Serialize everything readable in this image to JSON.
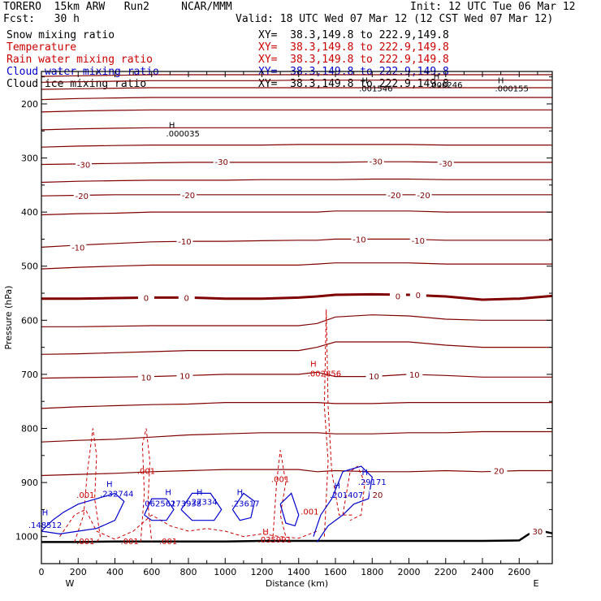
{
  "header": {
    "model": "TORERO  15km ARW   Run2     NCAR/MMM",
    "init": "Init: 12 UTC Tue 06 Mar 12",
    "fcst": "Fcst:   30 h",
    "valid": "Valid: 18 UTC Wed 07 Mar 12 (12 CST Wed 07 Mar 12)"
  },
  "fields": [
    {
      "name": "Snow mixing ratio",
      "xy": "XY=  38.3,149.8 to 222.9,149.8",
      "color": "#000000"
    },
    {
      "name": "Temperature",
      "xy": "XY=  38.3,149.8 to 222.9,149.8",
      "color": "#cc0000"
    },
    {
      "name": "Rain water mixing ratio",
      "xy": "XY=  38.3,149.8 to 222.9,149.8",
      "color": "#cc0000"
    },
    {
      "name": "Cloud water mixing ratio",
      "xy": "XY=  38.3,149.8 to 222.9,149.8",
      "color": "#0000cc"
    },
    {
      "name": "Cloud ice mixing ratio",
      "xy": "XY=  38.3,149.8 to 222.9,149.8",
      "color": "#000000"
    }
  ],
  "chart_data": {
    "type": "contour-cross-section",
    "xlabel": "Distance (km)",
    "ylabel": "Pressure (hPa)",
    "xlim": [
      0,
      2780
    ],
    "ylim": [
      1050,
      140
    ],
    "x_ticks": [
      0,
      200,
      400,
      600,
      800,
      1000,
      1200,
      1400,
      1600,
      1800,
      2000,
      2200,
      2400,
      2600
    ],
    "y_ticks": [
      200,
      300,
      400,
      500,
      600,
      700,
      800,
      900,
      1000
    ],
    "direction_left": "W",
    "direction_right": "E",
    "temperature_color": "#800000",
    "zero_isotherm_color": "#800000",
    "isotherm_labels": [
      {
        "text": "-30",
        "x": 230,
        "p": 312
      },
      {
        "text": "-30",
        "x": 980,
        "p": 307
      },
      {
        "text": "-30",
        "x": 1820,
        "p": 306
      },
      {
        "text": "-30",
        "x": 2200,
        "p": 310
      },
      {
        "text": "-20",
        "x": 220,
        "p": 370
      },
      {
        "text": "-20",
        "x": 800,
        "p": 368
      },
      {
        "text": "-20",
        "x": 1920,
        "p": 368
      },
      {
        "text": "-20",
        "x": 2080,
        "p": 368
      },
      {
        "text": "-10",
        "x": 200,
        "p": 465
      },
      {
        "text": "-10",
        "x": 780,
        "p": 454
      },
      {
        "text": "-10",
        "x": 1730,
        "p": 450
      },
      {
        "text": "-10",
        "x": 2050,
        "p": 452
      },
      {
        "text": "0",
        "x": 570,
        "p": 558
      },
      {
        "text": "0",
        "x": 790,
        "p": 558
      },
      {
        "text": "0",
        "x": 1940,
        "p": 555
      },
      {
        "text": "0",
        "x": 2050,
        "p": 553
      },
      {
        "text": "10",
        "x": 570,
        "p": 705
      },
      {
        "text": "10",
        "x": 780,
        "p": 702
      },
      {
        "text": "10",
        "x": 1810,
        "p": 703
      },
      {
        "text": "10",
        "x": 2030,
        "p": 700
      },
      {
        "text": "20",
        "x": 2490,
        "p": 878
      },
      {
        "text": "20",
        "x": 1830,
        "p": 922
      },
      {
        "text": "30",
        "x": 2700,
        "p": 990
      }
    ],
    "maxima_labels": [
      {
        "text": "H",
        "x": 1760,
        "p": 156,
        "color": "#000000"
      },
      {
        "text": ".001546",
        "x": 1820,
        "p": 171,
        "color": "#000000"
      },
      {
        "text": "H",
        "x": 2150,
        "p": 148,
        "color": "#000000"
      },
      {
        "text": ".000246",
        "x": 2200,
        "p": 164,
        "color": "#000000"
      },
      {
        "text": "H",
        "x": 2500,
        "p": 156,
        "color": "#000000"
      },
      {
        "text": ".000155",
        "x": 2560,
        "p": 171,
        "color": "#000000"
      },
      {
        "text": "H",
        "x": 710,
        "p": 238,
        "color": "#000000"
      },
      {
        "text": ".000035",
        "x": 770,
        "p": 254,
        "color": "#000000"
      },
      {
        "text": "H",
        "x": 1480,
        "p": 680,
        "color": "#cc0000"
      },
      {
        "text": ".002856",
        "x": 1540,
        "p": 698,
        "color": "#cc0000"
      },
      {
        "text": ".001",
        "x": 570,
        "p": 878,
        "color": "#cc0000"
      },
      {
        "text": ".001",
        "x": 1300,
        "p": 893,
        "color": "#cc0000"
      },
      {
        "text": ".001",
        "x": 240,
        "p": 922,
        "color": "#cc0000"
      },
      {
        "text": ".001",
        "x": 1460,
        "p": 953,
        "color": "#cc0000"
      },
      {
        "text": ".001",
        "x": 240,
        "p": 1008,
        "color": "#cc0000"
      },
      {
        "text": ".001",
        "x": 480,
        "p": 1008,
        "color": "#cc0000"
      },
      {
        "text": ".001",
        "x": 690,
        "p": 1008,
        "color": "#cc0000"
      },
      {
        "text": "H",
        "x": 1220,
        "p": 990,
        "color": "#cc0000"
      },
      {
        "text": ".035991",
        "x": 1270,
        "p": 1005,
        "color": "#cc0000"
      },
      {
        "text": "H",
        "x": 370,
        "p": 902,
        "color": "#0000cc"
      },
      {
        "text": ".232744",
        "x": 410,
        "p": 920,
        "color": "#0000cc"
      },
      {
        "text": "H",
        "x": 690,
        "p": 917,
        "color": "#0000cc"
      },
      {
        "text": ".062561",
        "x": 640,
        "p": 938,
        "color": "#0000cc"
      },
      {
        "text": ".273938",
        "x": 780,
        "p": 938,
        "color": "#0000cc"
      },
      {
        "text": "H",
        "x": 860,
        "p": 917,
        "color": "#0000cc"
      },
      {
        "text": ".27334",
        "x": 880,
        "p": 935,
        "color": "#0000cc"
      },
      {
        "text": "H",
        "x": 1080,
        "p": 917,
        "color": "#0000cc"
      },
      {
        "text": ".23617",
        "x": 1110,
        "p": 938,
        "color": "#0000cc"
      },
      {
        "text": "H",
        "x": 1760,
        "p": 880,
        "color": "#0000cc"
      },
      {
        "text": ".29171",
        "x": 1800,
        "p": 898,
        "color": "#0000cc"
      },
      {
        "text": "H",
        "x": 1610,
        "p": 905,
        "color": "#0000cc"
      },
      {
        "text": ".201407",
        "x": 1660,
        "p": 922,
        "color": "#0000cc"
      },
      {
        "text": "H",
        "x": 20,
        "p": 955,
        "color": "#0000cc"
      },
      {
        "text": ".148512",
        "x": 20,
        "p": 978,
        "color": "#0000cc"
      }
    ],
    "temperature_isotherms_p_at_x": {
      "x": [
        0,
        200,
        400,
        600,
        800,
        1000,
        1200,
        1400,
        1500,
        1600,
        1800,
        2000,
        2200,
        2400,
        2600,
        2780
      ],
      "levels": [
        [
          149,
          148,
          147,
          146,
          146,
          146,
          146,
          146,
          146,
          146,
          146,
          146,
          146,
          146,
          146,
          146
        ],
        [
          160,
          159,
          158,
          157,
          157,
          157,
          157,
          156,
          156,
          156,
          156,
          156,
          156,
          156,
          156,
          156
        ],
        [
          173,
          172,
          171,
          170,
          170,
          170,
          170,
          170,
          170,
          170,
          170,
          170,
          170,
          170,
          170,
          170
        ],
        [
          192,
          190,
          189,
          188,
          188,
          188,
          188,
          188,
          188,
          188,
          188,
          188,
          188,
          188,
          188,
          188
        ],
        [
          215,
          213,
          212,
          211,
          211,
          211,
          211,
          211,
          211,
          211,
          211,
          211,
          211,
          211,
          211,
          211
        ],
        [
          248,
          246,
          245,
          244,
          244,
          244,
          244,
          244,
          244,
          244,
          244,
          244,
          244,
          244,
          244,
          244
        ],
        [
          280,
          278,
          277,
          276,
          276,
          276,
          276,
          275,
          275,
          275,
          275,
          275,
          276,
          276,
          276,
          276
        ],
        [
          312,
          311,
          310,
          309,
          308,
          308,
          308,
          308,
          308,
          308,
          307,
          307,
          308,
          308,
          308,
          308
        ],
        [
          345,
          343,
          342,
          341,
          341,
          341,
          340,
          340,
          340,
          340,
          339,
          339,
          340,
          340,
          340,
          340
        ],
        [
          370,
          369,
          368,
          368,
          368,
          368,
          368,
          368,
          368,
          368,
          368,
          368,
          368,
          368,
          368,
          368
        ],
        [
          405,
          403,
          402,
          400,
          400,
          400,
          400,
          400,
          400,
          398,
          398,
          398,
          400,
          400,
          400,
          400
        ],
        [
          465,
          461,
          458,
          455,
          454,
          454,
          453,
          452,
          452,
          450,
          450,
          450,
          452,
          452,
          452,
          452
        ],
        [
          505,
          502,
          500,
          498,
          498,
          498,
          498,
          498,
          496,
          494,
          494,
          494,
          496,
          496,
          496,
          496
        ],
        [
          560,
          560,
          559,
          558,
          558,
          560,
          560,
          558,
          556,
          553,
          552,
          553,
          556,
          562,
          560,
          555
        ],
        [
          612,
          612,
          611,
          610,
          610,
          610,
          610,
          610,
          606,
          594,
          590,
          592,
          598,
          600,
          600,
          600
        ],
        [
          663,
          662,
          660,
          658,
          656,
          656,
          656,
          656,
          650,
          640,
          640,
          640,
          646,
          650,
          650,
          650
        ],
        [
          707,
          706,
          705,
          704,
          702,
          700,
          700,
          700,
          696,
          704,
          704,
          700,
          702,
          705,
          705,
          705
        ],
        [
          763,
          760,
          758,
          756,
          755,
          752,
          752,
          752,
          752,
          754,
          754,
          752,
          752,
          752,
          752,
          752
        ],
        [
          825,
          822,
          820,
          816,
          812,
          810,
          808,
          808,
          808,
          810,
          810,
          808,
          808,
          806,
          806,
          806
        ],
        [
          887,
          885,
          883,
          880,
          878,
          876,
          876,
          876,
          880,
          878,
          880,
          880,
          878,
          880,
          878,
          878
        ]
      ]
    },
    "surface_p_at_x": {
      "x": [
        0,
        200,
        400,
        600,
        800,
        1000,
        1200,
        1400,
        1500,
        1600,
        1800,
        2000,
        2200,
        2400,
        2600,
        2650,
        2700,
        2780
      ],
      "p": [
        1010,
        1010,
        1009,
        1009,
        1009,
        1009,
        1008,
        1008,
        1008,
        1008,
        1008,
        1008,
        1008,
        1008,
        1007,
        996,
        988,
        994
      ]
    }
  }
}
